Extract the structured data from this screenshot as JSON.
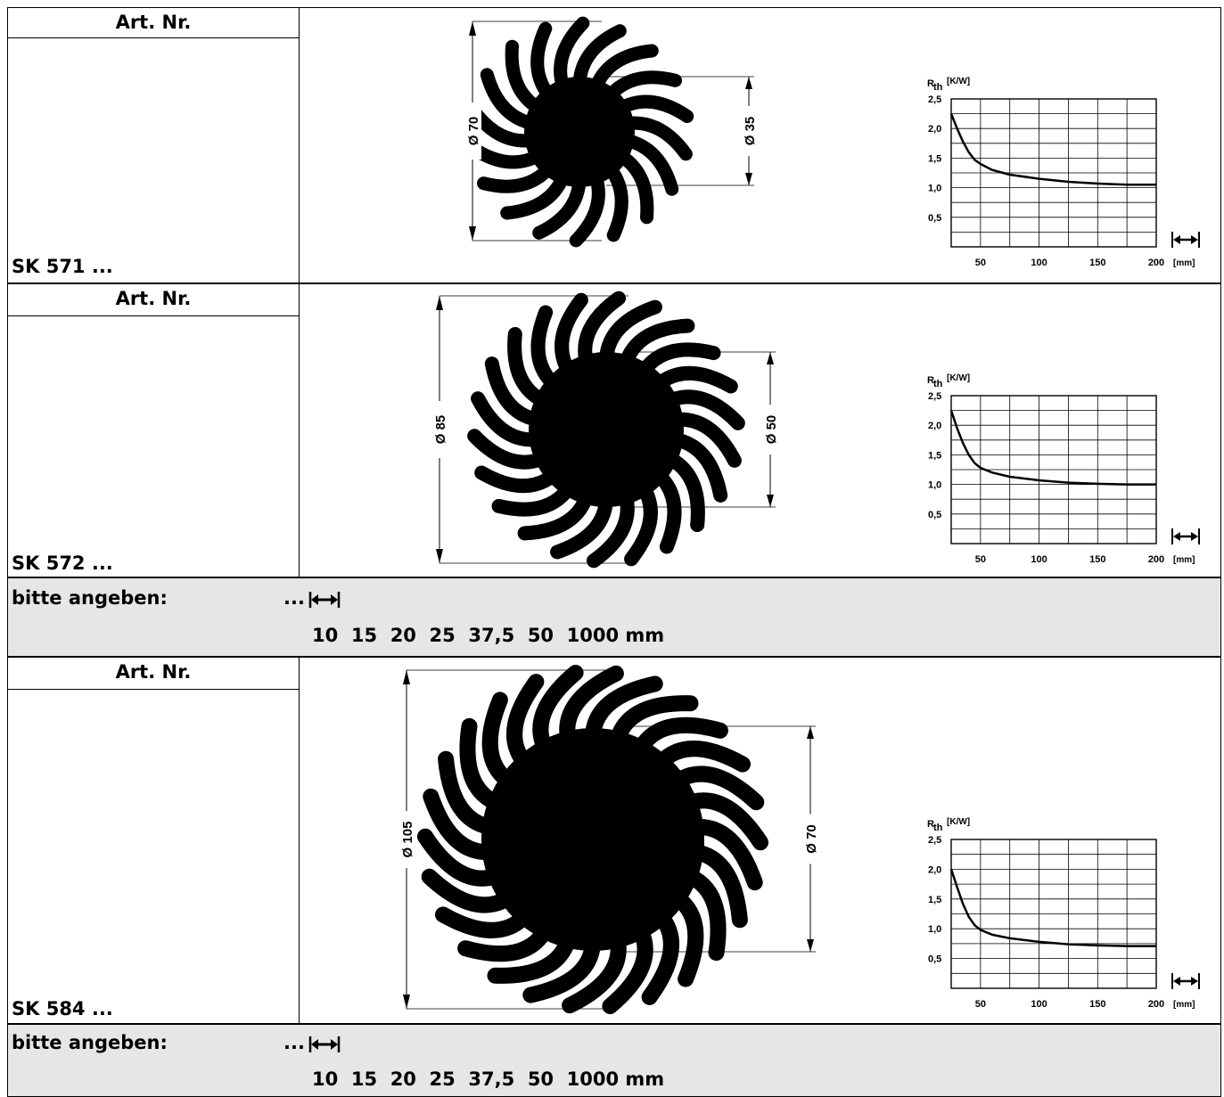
{
  "products": [
    {
      "art_header": "Art. Nr.",
      "name": "SK 571 ...",
      "dim_outer": "Ø 70",
      "dim_inner": "Ø 35",
      "fins": 18,
      "chart_data": {
        "type": "line",
        "ylabel": "R",
        "ylabel_sub": "th",
        "ylabel_unit": "[K/W]",
        "xlabel": "[mm]",
        "y_ticks": [
          "2,5",
          "2,0",
          "1,5",
          "1,0",
          "0,5"
        ],
        "x_ticks": [
          "50",
          "100",
          "150",
          "200"
        ],
        "xlim": [
          25,
          200
        ],
        "ylim": [
          0,
          2.5
        ],
        "x": [
          25,
          30,
          35,
          40,
          45,
          50,
          60,
          75,
          100,
          125,
          150,
          175,
          200
        ],
        "y": [
          2.25,
          2.0,
          1.78,
          1.6,
          1.47,
          1.4,
          1.3,
          1.22,
          1.15,
          1.1,
          1.07,
          1.05,
          1.05
        ]
      }
    },
    {
      "art_header": "Art. Nr.",
      "name": "SK 572 ...",
      "dim_outer": "Ø 85",
      "dim_inner": "Ø 50",
      "fins": 22,
      "chart_data": {
        "type": "line",
        "ylabel": "R",
        "ylabel_sub": "th",
        "ylabel_unit": "[K/W]",
        "xlabel": "[mm]",
        "y_ticks": [
          "2,5",
          "2,0",
          "1,5",
          "1,0",
          "0,5"
        ],
        "x_ticks": [
          "50",
          "100",
          "150",
          "200"
        ],
        "xlim": [
          25,
          200
        ],
        "ylim": [
          0,
          2.5
        ],
        "x": [
          25,
          30,
          35,
          40,
          45,
          50,
          60,
          75,
          100,
          125,
          150,
          175,
          200
        ],
        "y": [
          2.25,
          1.95,
          1.7,
          1.5,
          1.36,
          1.28,
          1.2,
          1.13,
          1.07,
          1.03,
          1.01,
          1.0,
          1.0
        ]
      }
    },
    {
      "art_header": "Art. Nr.",
      "name": "SK 584 ...",
      "dim_outer": "Ø 105",
      "dim_inner": "Ø 70",
      "fins": 26,
      "chart_data": {
        "type": "line",
        "ylabel": "R",
        "ylabel_sub": "th",
        "ylabel_unit": "[K/W]",
        "xlabel": "[mm]",
        "y_ticks": [
          "2,5",
          "2,0",
          "1,5",
          "1,0",
          "0,5"
        ],
        "x_ticks": [
          "50",
          "100",
          "150",
          "200"
        ],
        "xlim": [
          25,
          200
        ],
        "ylim": [
          0,
          2.5
        ],
        "x": [
          25,
          30,
          35,
          40,
          45,
          50,
          60,
          75,
          100,
          125,
          150,
          175,
          200
        ],
        "y": [
          2.0,
          1.7,
          1.42,
          1.2,
          1.06,
          0.98,
          0.9,
          0.84,
          0.78,
          0.74,
          0.72,
          0.71,
          0.71
        ]
      }
    }
  ],
  "order": {
    "label": "bitte angeben:",
    "prefix": "...",
    "lengths": "10  15  20  25  37,5  50  1000 mm"
  }
}
